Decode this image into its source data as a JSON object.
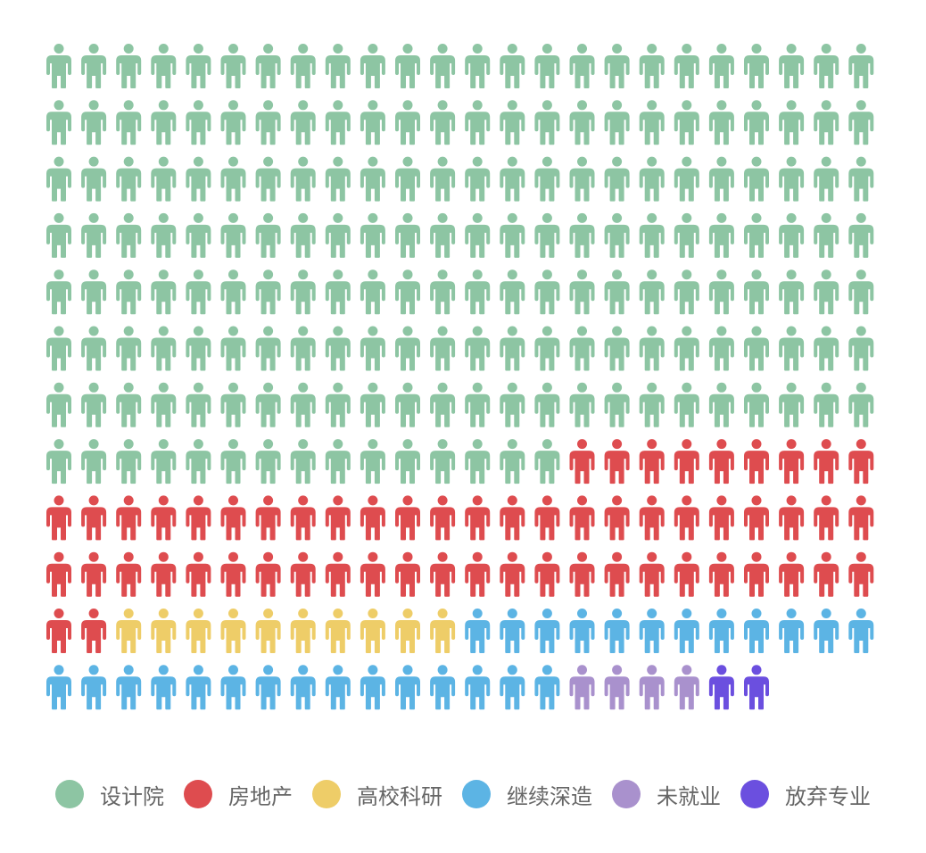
{
  "chart_data": {
    "type": "pictogram",
    "grid": {
      "columns": 24,
      "rows": 12
    },
    "series": [
      {
        "name": "设计院",
        "value": 183,
        "color": "#8dc5a3"
      },
      {
        "name": "房地产",
        "value": 59,
        "color": "#de4c4f"
      },
      {
        "name": "高校科研",
        "value": 10,
        "color": "#eecd68"
      },
      {
        "name": "继续深造",
        "value": 27,
        "color": "#5cb4e4"
      },
      {
        "name": "未就业",
        "value": 4,
        "color": "#a991cd"
      },
      {
        "name": "放弃专业",
        "value": 2,
        "color": "#6b4fdf"
      }
    ],
    "legend_position": "bottom",
    "icon": "person-icon"
  }
}
